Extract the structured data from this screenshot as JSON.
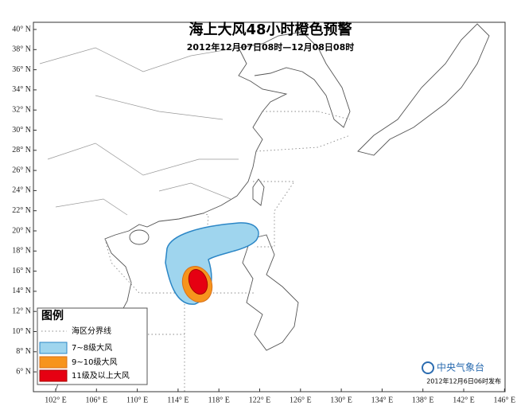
{
  "title": "海上大风48小时橙色预警",
  "subtitle": "2012年12月07日08时—12月08日08时",
  "lat_labels": [
    "40° N",
    "38° N",
    "36° N",
    "34° N",
    "32° N",
    "30° N",
    "28° N",
    "26° N",
    "24° N",
    "22° N",
    "20° N",
    "18° N",
    "16° N",
    "14° N",
    "12° N",
    "10° N",
    "8° N",
    "6° N"
  ],
  "lon_labels": [
    "102° E",
    "106° E",
    "110° E",
    "114° E",
    "118° E",
    "122° E",
    "126° E",
    "130° E",
    "134° E",
    "138° E",
    "142° E",
    "146° E"
  ],
  "legend": {
    "title": "图例",
    "items": [
      "海区分界线",
      "7~8级大风",
      "9~10级大风",
      "11级及以上大风"
    ]
  },
  "footer": {
    "agency": "中央气象台",
    "issued": "2012年12月6日06时发布"
  }
}
